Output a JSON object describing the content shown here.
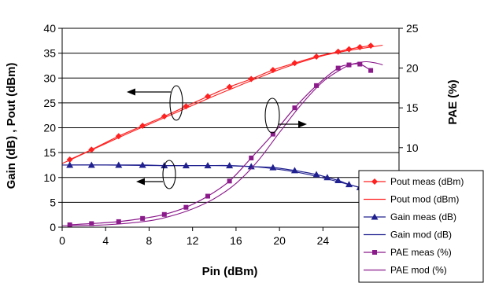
{
  "chart_data": {
    "type": "line",
    "xlabel": "Pin (dBm)",
    "ylabel_left": "Gain (dB) , Pout (dBm)",
    "ylabel_right": "PAE (%)",
    "xlim": [
      0,
      31
    ],
    "ylim_left": [
      0,
      40
    ],
    "ylim_right": [
      0,
      25
    ],
    "x_ticks": [
      0,
      4,
      8,
      12,
      16,
      20,
      24,
      28
    ],
    "y_left_ticks": [
      0,
      5,
      10,
      15,
      20,
      25,
      30,
      35,
      40
    ],
    "y_right_ticks": [
      10,
      15,
      20,
      25
    ],
    "grid": "horizontal",
    "legend_position": "bottom-right",
    "colors": {
      "pout": "#ff2020",
      "gain": "#202090",
      "pae": "#8b1a8b"
    },
    "series": [
      {
        "name": "Pout meas (dBm)",
        "axis": "left",
        "color_key": "pout",
        "style": "markers",
        "marker": "diamond",
        "x": [
          0.7,
          2.7,
          5.2,
          7.4,
          9.4,
          11.4,
          13.4,
          15.4,
          17.4,
          19.4,
          21.4,
          23.4,
          25.4,
          26.4,
          27.4,
          28.4
        ],
        "y": [
          13.6,
          15.6,
          18.3,
          20.4,
          22.3,
          24.3,
          26.3,
          28.2,
          29.8,
          31.6,
          33.0,
          34.3,
          35.3,
          35.8,
          36.2,
          36.5
        ]
      },
      {
        "name": "Pout mod (dBm)",
        "axis": "left",
        "color_key": "pout",
        "style": "line",
        "x": [
          0,
          2,
          4,
          6,
          8,
          10,
          12,
          14,
          16,
          18,
          20,
          22,
          24,
          26,
          28,
          29.5
        ],
        "y": [
          12.8,
          14.8,
          16.8,
          18.8,
          20.7,
          22.6,
          24.5,
          26.4,
          28.2,
          30.0,
          31.7,
          33.2,
          34.5,
          35.4,
          36.1,
          36.6
        ]
      },
      {
        "name": "Gain meas (dB)",
        "axis": "left",
        "color_key": "gain",
        "style": "markers",
        "marker": "triangle",
        "x": [
          0.7,
          2.7,
          5.2,
          7.4,
          9.4,
          11.4,
          13.4,
          15.4,
          17.4,
          19.4,
          21.4,
          23.4,
          24.4,
          25.4,
          26.4,
          27.4,
          28.4
        ],
        "y": [
          12.5,
          12.5,
          12.5,
          12.5,
          12.4,
          12.4,
          12.4,
          12.4,
          12.2,
          12.0,
          11.4,
          10.6,
          10.0,
          9.4,
          8.6,
          8.0,
          7.4
        ]
      },
      {
        "name": "Gain mod (dB)",
        "axis": "left",
        "color_key": "gain",
        "style": "line",
        "x": [
          0,
          4,
          8,
          12,
          14,
          16,
          18,
          20,
          22,
          24,
          26,
          28,
          29.5
        ],
        "y": [
          12.5,
          12.5,
          12.4,
          12.4,
          12.4,
          12.3,
          12.1,
          11.6,
          10.9,
          9.9,
          8.8,
          7.6,
          6.8
        ]
      },
      {
        "name": "PAE meas (%)",
        "axis": "right",
        "color_key": "pae",
        "style": "markers",
        "marker": "square",
        "x": [
          0.7,
          2.7,
          5.2,
          7.4,
          9.4,
          11.4,
          13.4,
          15.4,
          17.4,
          19.4,
          21.4,
          23.4,
          25.4,
          26.4,
          27.4,
          28.4
        ],
        "y": [
          0.3,
          0.45,
          0.7,
          1.1,
          1.6,
          2.5,
          3.9,
          5.8,
          8.7,
          11.7,
          15.0,
          17.8,
          20.0,
          20.4,
          20.5,
          19.7
        ]
      },
      {
        "name": "PAE mod (%)",
        "axis": "right",
        "color_key": "pae",
        "style": "line",
        "x": [
          0,
          4,
          8,
          10,
          12,
          14,
          16,
          18,
          20,
          22,
          24,
          26,
          27,
          28,
          29,
          29.5
        ],
        "y": [
          0.2,
          0.3,
          0.8,
          1.4,
          2.3,
          3.6,
          5.5,
          8.3,
          11.9,
          15.4,
          18.3,
          20.1,
          20.6,
          20.8,
          20.6,
          20.4
        ]
      }
    ]
  }
}
